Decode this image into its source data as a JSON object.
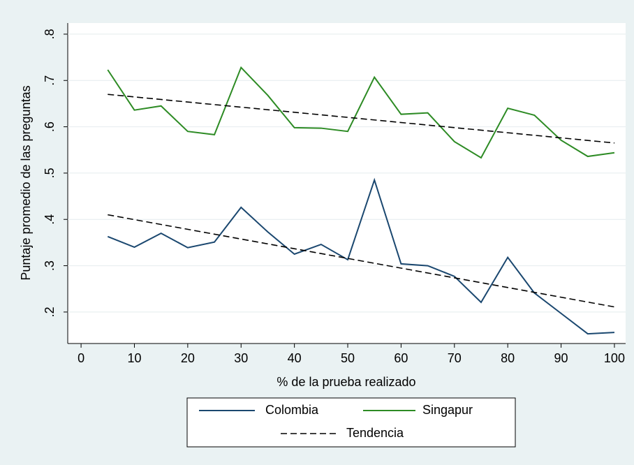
{
  "chart_data": {
    "type": "line",
    "x_label": "% de la prueba realizado",
    "y_label": "Puntaje promedio de las preguntas",
    "x": [
      5,
      10,
      15,
      20,
      25,
      30,
      35,
      40,
      45,
      50,
      55,
      60,
      65,
      70,
      75,
      80,
      85,
      90,
      95,
      100
    ],
    "series": [
      {
        "name": "Colombia",
        "color": "#1a476f",
        "values": [
          0.363,
          0.34,
          0.37,
          0.339,
          0.351,
          0.426,
          0.373,
          0.325,
          0.346,
          0.313,
          0.485,
          0.304,
          0.3,
          0.277,
          0.221,
          0.318,
          0.241,
          0.197,
          0.153,
          0.156
        ]
      },
      {
        "name": "Singapur",
        "color": "#2d8b24",
        "values": [
          0.723,
          0.636,
          0.645,
          0.59,
          0.583,
          0.728,
          0.668,
          0.598,
          0.597,
          0.59,
          0.707,
          0.627,
          0.63,
          0.568,
          0.533,
          0.64,
          0.625,
          0.571,
          0.536,
          0.544
        ]
      }
    ],
    "trend": {
      "name": "Tendencia",
      "color": "#000000",
      "lines": [
        {
          "x": [
            5,
            100
          ],
          "values": [
            0.41,
            0.211
          ]
        },
        {
          "x": [
            5,
            100
          ],
          "values": [
            0.67,
            0.565
          ]
        }
      ]
    },
    "xlim": [
      -2.5,
      102.1
    ],
    "ylim": [
      0.132,
      0.824
    ],
    "xticks": [
      0,
      10,
      20,
      30,
      40,
      50,
      60,
      70,
      80,
      90,
      100
    ],
    "yticks": [
      {
        "value": 0.2,
        "label": ".2"
      },
      {
        "value": 0.3,
        "label": ".3"
      },
      {
        "value": 0.4,
        "label": ".4"
      },
      {
        "value": 0.5,
        "label": ".5"
      },
      {
        "value": 0.6,
        "label": ".6"
      },
      {
        "value": 0.7,
        "label": ".7"
      },
      {
        "value": 0.8,
        "label": ".8"
      }
    ],
    "grid": true
  }
}
